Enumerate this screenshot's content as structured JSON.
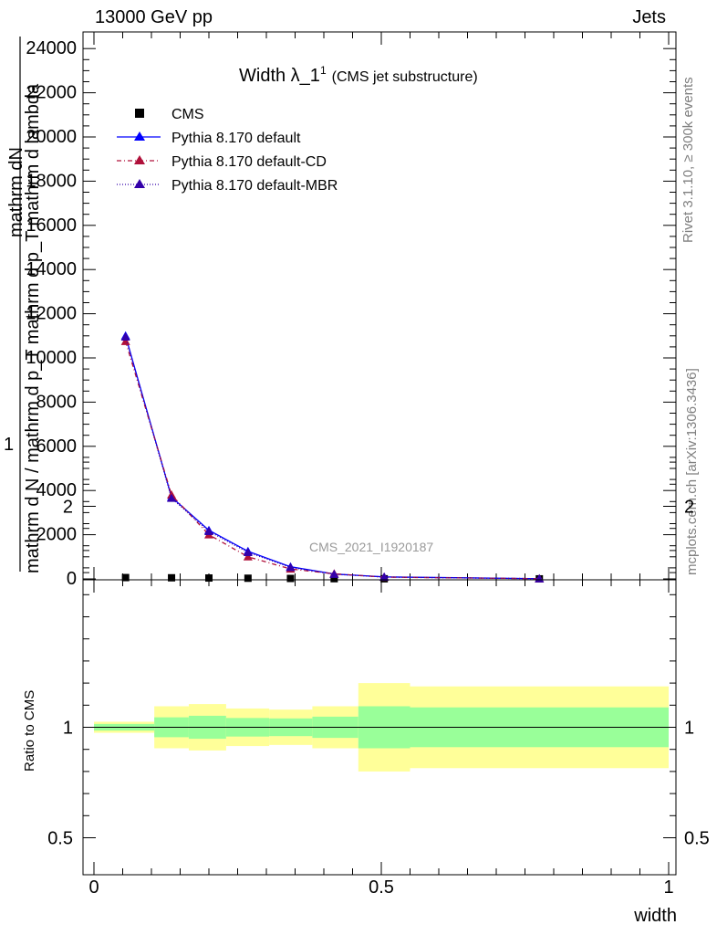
{
  "header": {
    "left": "13000 GeV pp",
    "right": "Jets"
  },
  "side_labels": {
    "rivet": "Rivet 3.1.10, ≥ 300k events",
    "mcplots": "mcplots.cern.ch [arXiv:1306.3436]"
  },
  "chart_data": [
    {
      "type": "line",
      "title": "Width λ_1",
      "title_sup": "1",
      "subtitle": "(CMS jet substructure)",
      "watermark": "CMS_2021_I1920187",
      "ylabel_lines": [
        "mathrm dN",
        "1",
        "mathrm d N / mathrm d p_T mathrm d p_T mathrm d lambda"
      ],
      "xlim": [
        0,
        1
      ],
      "ylim": [
        0,
        25000
      ],
      "y_ticks": [
        0,
        2000,
        4000,
        6000,
        8000,
        10000,
        12000,
        14000,
        16000,
        18000,
        20000,
        22000,
        24000
      ],
      "y_tick_labels": [
        "0",
        "2000",
        "4000",
        "6000",
        "8000",
        "10000",
        "12000",
        "14000",
        "16000",
        "18000",
        "20000",
        "22000",
        "24000"
      ],
      "legend_position": "top-left",
      "x": [
        0.055,
        0.135,
        0.2,
        0.268,
        0.342,
        0.418,
        0.505,
        0.775
      ],
      "series": [
        {
          "name": "CMS",
          "color": "#000000",
          "marker": "square",
          "values": [
            60,
            50,
            40,
            30,
            20,
            10,
            5,
            2
          ]
        },
        {
          "name": "Pythia 8.170 default",
          "color": "#0000ff",
          "marker": "triangle",
          "line": "solid",
          "values": [
            11000,
            3700,
            2200,
            1250,
            550,
            220,
            90,
            10
          ]
        },
        {
          "name": "Pythia 8.170 default-CD",
          "color": "#b0103a",
          "marker": "triangle",
          "line": "dashdot",
          "values": [
            10750,
            3800,
            2000,
            1000,
            450,
            230,
            80,
            10
          ]
        },
        {
          "name": "Pythia 8.170 default-MBR",
          "color": "#3300aa",
          "marker": "triangle",
          "line": "dotted",
          "values": [
            10950,
            3650,
            2150,
            1200,
            520,
            210,
            85,
            10
          ]
        }
      ]
    },
    {
      "type": "area",
      "ylabel": "Ratio to CMS",
      "xlabel": "width",
      "xlim": [
        0,
        1
      ],
      "ylim": [
        0.35,
        2.35
      ],
      "y_ticks": [
        0.5,
        1,
        2
      ],
      "y_tick_labels": [
        "0.5",
        "1",
        "2"
      ],
      "x_ticks": [
        0,
        0.5,
        1
      ],
      "x_tick_labels": [
        "0",
        "0.5",
        "1"
      ],
      "reference": 1,
      "band_colors": {
        "stat": "#99ff99",
        "total": "#ffff99"
      },
      "bins": [
        {
          "x0": 0.0,
          "x1": 0.105,
          "stat": [
            0.985,
            1.015
          ],
          "total": [
            0.975,
            1.025
          ]
        },
        {
          "x0": 0.105,
          "x1": 0.165,
          "stat": [
            0.955,
            1.045
          ],
          "total": [
            0.905,
            1.095
          ]
        },
        {
          "x0": 0.165,
          "x1": 0.23,
          "stat": [
            0.948,
            1.052
          ],
          "total": [
            0.895,
            1.105
          ]
        },
        {
          "x0": 0.23,
          "x1": 0.305,
          "stat": [
            0.958,
            1.042
          ],
          "total": [
            0.915,
            1.085
          ]
        },
        {
          "x0": 0.305,
          "x1": 0.38,
          "stat": [
            0.96,
            1.04
          ],
          "total": [
            0.92,
            1.08
          ]
        },
        {
          "x0": 0.38,
          "x1": 0.46,
          "stat": [
            0.952,
            1.048
          ],
          "total": [
            0.905,
            1.095
          ]
        },
        {
          "x0": 0.46,
          "x1": 0.55,
          "stat": [
            0.905,
            1.095
          ],
          "total": [
            0.8,
            1.2
          ]
        },
        {
          "x0": 0.55,
          "x1": 1.0,
          "stat": [
            0.91,
            1.09
          ],
          "total": [
            0.815,
            1.185
          ]
        }
      ]
    }
  ]
}
